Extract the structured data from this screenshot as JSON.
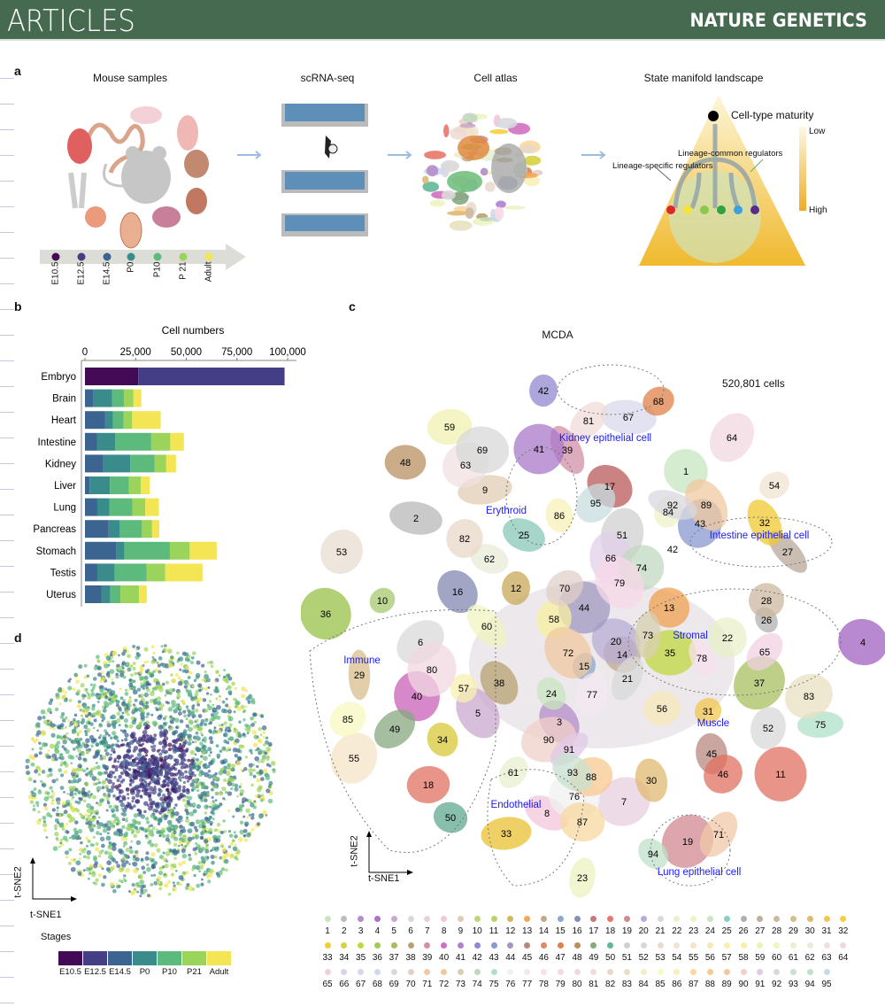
{
  "header": {
    "section": "ARTICLES",
    "journal": "NATURE GENETICS"
  },
  "panel_a": {
    "label": "a",
    "titles": [
      "Mouse samples",
      "scRNA-seq",
      "Cell atlas",
      "State manifold landscape"
    ],
    "timeline": [
      "E10.5",
      "E12.5",
      "E14.5",
      "P0",
      "P10",
      "P 21",
      "Adult"
    ],
    "landscape": {
      "maturity": "Cell-type maturity",
      "low": "Low",
      "high": "High",
      "common": "Lineage-common regulators",
      "specific": "Lineage-specific regulators"
    }
  },
  "panel_b": {
    "label": "b"
  },
  "panel_c": {
    "label": "c",
    "title": "MCDA",
    "cell_count": "520,801 cells",
    "regions": [
      "Kidney epithelial cell",
      "Erythroid",
      "Intestine epithelial cell",
      "Stromal",
      "Immune",
      "Muscle",
      "Endothelial",
      "Lung epithelial cell"
    ],
    "xlabel": "t-SNE1",
    "ylabel": "t-SNE2",
    "legend": [
      "1",
      "2",
      "3",
      "4",
      "5",
      "6",
      "7",
      "8",
      "9",
      "10",
      "11",
      "12",
      "13",
      "14",
      "15",
      "16",
      "17",
      "18",
      "19",
      "20",
      "21",
      "22",
      "23",
      "24",
      "25",
      "26",
      "27",
      "28",
      "29",
      "30",
      "31",
      "32",
      "33",
      "34",
      "35",
      "36",
      "37",
      "38",
      "39",
      "40",
      "41",
      "42",
      "43",
      "44",
      "45",
      "46",
      "47",
      "48",
      "49",
      "50",
      "51",
      "52",
      "53",
      "54",
      "55",
      "56",
      "57",
      "58",
      "59",
      "60",
      "61",
      "62",
      "63",
      "64",
      "65",
      "66",
      "67",
      "68",
      "69",
      "70",
      "71",
      "72",
      "73",
      "74",
      "75",
      "76",
      "77",
      "78",
      "79",
      "80",
      "81",
      "82",
      "83",
      "84",
      "85",
      "86",
      "87",
      "88",
      "89",
      "90",
      "91",
      "92",
      "93",
      "94",
      "95"
    ],
    "legend_colors": [
      "#c8e6c0",
      "#bdbdbd",
      "#b48cc8",
      "#b070c8",
      "#c9a9d0",
      "#d9d9d9",
      "#e8cfe0",
      "#f3c6da",
      "#e0cdb4",
      "#bcd67a",
      "#b6d36a",
      "#d4b85a",
      "#f3a65a",
      "#c2a98a",
      "#8fa8c8",
      "#8890b8",
      "#c47a7a",
      "#e8776a",
      "#d08a92",
      "#b8acd6",
      "#d9d9d9",
      "#eaf0c8",
      "#eef3c0",
      "#c8e6c0",
      "#88cfc0",
      "#b0b0b0",
      "#bfae9c",
      "#ccb8a0",
      "#d8bd8c",
      "#e0b870",
      "#f0c850",
      "#f5d040",
      "#f0d030",
      "#d8d040",
      "#c0d840",
      "#a0cc50",
      "#a8bc60",
      "#b8a070",
      "#d090a8",
      "#d070c0",
      "#b080d0",
      "#9088d0",
      "#8898d0",
      "#a098c0",
      "#b88880",
      "#e08860",
      "#e08050",
      "#b89060",
      "#88a880",
      "#60b898",
      "#d0d0d0",
      "#d8d8d8",
      "#e8dcd0",
      "#f0e4d0",
      "#f5e4c8",
      "#f8e8b8",
      "#f8f0b0",
      "#f8f0a0",
      "#f0f0b0",
      "#f0f4c0",
      "#e8f0d0",
      "#e8ecd8",
      "#f0e0e0",
      "#f0d8e0",
      "#f0d0e0",
      "#e0d0e8",
      "#d8d8ec",
      "#d0d8f0",
      "#d8d8d8",
      "#e0d0c8",
      "#f0c8a8",
      "#f0c8a0",
      "#d8d0b0",
      "#c0d8c0",
      "#b0e0c8",
      "#f0f0f0",
      "#f4e8f0",
      "#f8e0ec",
      "#f8d8e8",
      "#f0d8e0",
      "#f0dcd8",
      "#e8d8c8",
      "#e8e0c0",
      "#f0f0c8",
      "#f8f8c0",
      "#f8f0b8",
      "#f8d8a0",
      "#f8c890",
      "#f0c8a0",
      "#f0d0c8",
      "#e0c8e8",
      "#d8d8e0",
      "#c8e0d0",
      "#c0e0c8",
      "#c8dce0"
    ],
    "region_label_color": "#1a1aff"
  },
  "panel_d": {
    "label": "d",
    "xlabel": "t-SNE1",
    "ylabel": "t-SNE2",
    "legend_title": "Stages",
    "stages": [
      "E10.5",
      "E12.5",
      "E14.5",
      "P0",
      "P10",
      "P21",
      "Adult"
    ]
  },
  "stage_colors": [
    "#430a55",
    "#433e85",
    "#3b6590",
    "#3a8b8c",
    "#5cbb7c",
    "#9bd45a",
    "#f3e553"
  ],
  "chart_data": {
    "type": "bar",
    "orientation": "horizontal",
    "stacked": true,
    "title": "Cell numbers",
    "xlabel": "Cell numbers",
    "ylabel": "",
    "xlim": [
      0,
      100000
    ],
    "x_ticks": [
      "0",
      "25,000",
      "50,000",
      "75,000",
      "100,000"
    ],
    "x_tick_values": [
      0,
      25000,
      50000,
      75000,
      100000
    ],
    "categories": [
      "Embryo",
      "Brain",
      "Heart",
      "Intestine",
      "Kidney",
      "Liver",
      "Lung",
      "Pancreas",
      "Stomach",
      "Testis",
      "Uterus"
    ],
    "series": [
      {
        "name": "E10.5",
        "values": [
          26300,
          0,
          0,
          0,
          0,
          0,
          0,
          0,
          0,
          0,
          0
        ]
      },
      {
        "name": "E12.5",
        "values": [
          72200,
          0,
          0,
          0,
          0,
          0,
          0,
          0,
          0,
          0,
          0
        ]
      },
      {
        "name": "E14.5",
        "values": [
          0,
          4100,
          10000,
          5900,
          9100,
          2300,
          6100,
          11700,
          15300,
          6100,
          8100
        ]
      },
      {
        "name": "P0",
        "values": [
          0,
          9200,
          3800,
          9100,
          13300,
          10000,
          5900,
          5500,
          4100,
          8600,
          4400
        ]
      },
      {
        "name": "P10",
        "values": [
          0,
          5900,
          5300,
          17700,
          11900,
          9400,
          11400,
          10900,
          22500,
          15800,
          5000
        ]
      },
      {
        "name": "P21",
        "values": [
          0,
          4700,
          4200,
          9400,
          5800,
          5900,
          6400,
          5000,
          9800,
          9100,
          9200
        ]
      },
      {
        "name": "Adult",
        "values": [
          0,
          3900,
          14100,
          6700,
          4800,
          4400,
          6700,
          3600,
          13300,
          18400,
          3800
        ]
      }
    ],
    "grid": false
  }
}
